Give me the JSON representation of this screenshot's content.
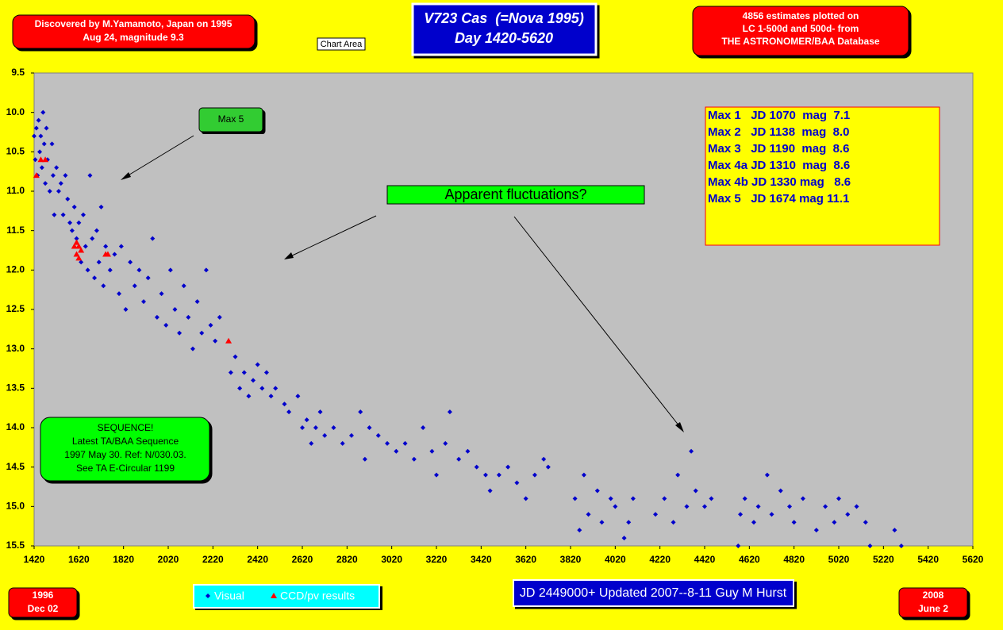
{
  "chart_data": {
    "type": "scatter",
    "title": "V723 Cas  (=Nova 1995)",
    "subtitle": "Day 1420-5620",
    "xlim": [
      1420,
      5620
    ],
    "xticks": [
      1420,
      1620,
      1820,
      2020,
      2220,
      2420,
      2620,
      2820,
      3020,
      3220,
      3420,
      3620,
      3820,
      4020,
      4220,
      4420,
      4620,
      4820,
      5020,
      5220,
      5420,
      5620
    ],
    "ylim": [
      15.5,
      9.5
    ],
    "yticks": [
      9.5,
      {
        "value": 10,
        "label": "10.0"
      },
      10.5,
      {
        "value": 11,
        "label": "11.0"
      },
      11.5,
      {
        "value": 12,
        "label": "12.0"
      },
      12.5,
      {
        "value": 13,
        "label": "13.0"
      },
      13.5,
      {
        "value": 14,
        "label": "14.0"
      },
      14.5,
      {
        "value": 15,
        "label": "15.0"
      },
      15.5
    ],
    "series": [
      {
        "name": "Visual",
        "color": "#0000cc",
        "marker": "diamond",
        "x": [
          1420,
          1425,
          1430,
          1435,
          1440,
          1445,
          1450,
          1455,
          1460,
          1465,
          1470,
          1475,
          1480,
          1490,
          1500,
          1505,
          1510,
          1520,
          1530,
          1540,
          1550,
          1560,
          1570,
          1580,
          1590,
          1600,
          1610,
          1620,
          1630,
          1640,
          1650,
          1660,
          1670,
          1680,
          1690,
          1700,
          1710,
          1720,
          1730,
          1740,
          1760,
          1780,
          1800,
          1810,
          1830,
          1850,
          1870,
          1890,
          1910,
          1930,
          1950,
          1970,
          1990,
          2010,
          2030,
          2050,
          2070,
          2090,
          2110,
          2130,
          2150,
          2170,
          2190,
          2210,
          2230,
          2250,
          2300,
          2320,
          2340,
          2360,
          2380,
          2400,
          2420,
          2440,
          2460,
          2480,
          2500,
          2540,
          2560,
          2600,
          2620,
          2640,
          2660,
          2680,
          2700,
          2720,
          2760,
          2800,
          2840,
          2880,
          2900,
          2920,
          2960,
          3000,
          3040,
          3080,
          3120,
          3160,
          3200,
          3220,
          3260,
          3280,
          3320,
          3360,
          3400,
          3440,
          3460,
          3500,
          3540,
          3580,
          3620,
          3660,
          3700,
          3720,
          3840,
          3860,
          3880,
          3900,
          3940,
          3960,
          4000,
          4020,
          4060,
          4080,
          4100,
          4200,
          4240,
          4280,
          4300,
          4340,
          4360,
          4380,
          4420,
          4450,
          4570,
          4580,
          4600,
          4640,
          4660,
          4700,
          4720,
          4760,
          4800,
          4820,
          4860,
          4920,
          4960,
          5000,
          5020,
          5060,
          5100,
          5140,
          5160,
          5270,
          5300
        ],
        "values": [
          10.3,
          10.6,
          10.2,
          10.8,
          10.1,
          10.5,
          10.3,
          10.7,
          10.0,
          10.4,
          10.9,
          10.2,
          10.6,
          11.0,
          10.4,
          10.8,
          11.3,
          10.7,
          11.0,
          10.9,
          11.3,
          10.8,
          11.1,
          11.4,
          11.5,
          11.2,
          11.6,
          11.4,
          11.9,
          11.3,
          11.7,
          12.0,
          10.8,
          11.6,
          12.1,
          11.5,
          11.9,
          11.2,
          12.2,
          11.7,
          12.0,
          11.8,
          12.3,
          11.7,
          12.5,
          11.9,
          12.2,
          12.0,
          12.4,
          12.1,
          11.6,
          12.6,
          12.3,
          12.7,
          12.0,
          12.5,
          12.8,
          12.2,
          12.6,
          13.0,
          12.4,
          12.8,
          12.0,
          12.7,
          12.9,
          12.6,
          13.3,
          13.1,
          13.5,
          13.3,
          13.6,
          13.4,
          13.2,
          13.5,
          13.3,
          13.6,
          13.5,
          13.7,
          13.8,
          13.6,
          14.0,
          13.9,
          14.2,
          14.0,
          13.8,
          14.1,
          14.0,
          14.2,
          14.1,
          13.8,
          14.4,
          14.0,
          14.1,
          14.2,
          14.3,
          14.2,
          14.4,
          14.0,
          14.3,
          14.6,
          14.2,
          13.8,
          14.4,
          14.3,
          14.5,
          14.6,
          14.8,
          14.6,
          14.5,
          14.7,
          14.9,
          14.6,
          14.4,
          14.5,
          14.9,
          15.3,
          14.6,
          15.1,
          14.8,
          15.2,
          14.9,
          15.0,
          15.4,
          15.2,
          14.9,
          15.1,
          14.9,
          15.2,
          14.6,
          15.0,
          14.3,
          14.8,
          15.0,
          14.9,
          15.5,
          15.1,
          14.9,
          15.2,
          15.0,
          14.6,
          15.1,
          14.8,
          15.0,
          15.2,
          14.9,
          15.3,
          15.0,
          15.2,
          14.9,
          15.1,
          15.0,
          15.2,
          15.5,
          15.3,
          15.5
        ]
      },
      {
        "name": "CCD/pv results",
        "color": "#ff0000",
        "marker": "triangle",
        "x": [
          1430,
          1450,
          1470,
          1600,
          1610,
          1620,
          1610,
          1620,
          1630,
          1740,
          1750,
          2290
        ],
        "values": [
          10.8,
          10.6,
          10.6,
          11.7,
          11.65,
          11.7,
          11.8,
          11.85,
          11.75,
          11.8,
          11.8,
          12.9
        ]
      }
    ],
    "annotations": {
      "discovery": [
        "Discovered by M.Yamamoto, Japan on 1995",
        "Aug 24, magnitude 9.3"
      ],
      "database": [
        "4856 estimates plotted on",
        "LC 1-500d and 500d- from",
        "THE ASTRONOMER/BAA Database"
      ],
      "chart_area": "Chart Area",
      "max5": "Max 5",
      "fluctuations": "Apparent fluctuations?",
      "maxima": [
        "Max 1   JD 1070  mag  7.1",
        "Max 2   JD 1138  mag  8.0",
        "Max 3   JD 1190  mag  8.6",
        "Max 4a JD 1310  mag  8.6",
        "Max 4b JD 1330 mag   8.6",
        "Max 5   JD 1674 mag 11.1"
      ],
      "sequence": [
        "SEQUENCE!",
        "Latest TA/BAA Sequence",
        "1997 May 30. Ref: N/030.03.",
        "See TA E-Circular 1199"
      ],
      "start_date": [
        "1996",
        "Dec 02"
      ],
      "end_date": [
        "2008",
        "June 2"
      ],
      "footer": "JD 2449000+ Updated 2007--8-11 Guy M Hurst"
    }
  }
}
